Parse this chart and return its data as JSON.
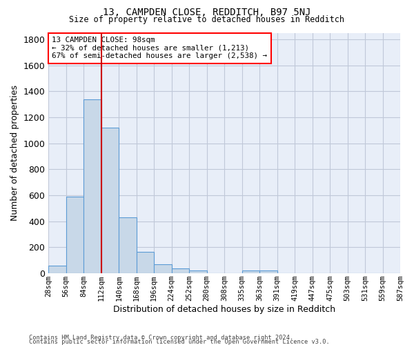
{
  "title1": "13, CAMPDEN CLOSE, REDDITCH, B97 5NJ",
  "title2": "Size of property relative to detached houses in Redditch",
  "xlabel": "Distribution of detached houses by size in Redditch",
  "ylabel": "Number of detached properties",
  "footnote1": "Contains HM Land Registry data © Crown copyright and database right 2024.",
  "footnote2": "Contains public sector information licensed under the Open Government Licence v3.0.",
  "annotation_line1": "13 CAMPDEN CLOSE: 98sqm",
  "annotation_line2": "← 32% of detached houses are smaller (1,213)",
  "annotation_line3": "67% of semi-detached houses are larger (2,538) →",
  "bar_color": "#c8d8e8",
  "bar_edge_color": "#5b9bd5",
  "grid_color": "#c0c8d8",
  "bg_color": "#e8eef8",
  "vline_color": "#cc0000",
  "vline_x": 2.5,
  "bin_labels": [
    "28sqm",
    "56sqm",
    "84sqm",
    "112sqm",
    "140sqm",
    "168sqm",
    "196sqm",
    "224sqm",
    "252sqm",
    "280sqm",
    "308sqm",
    "335sqm",
    "363sqm",
    "391sqm",
    "419sqm",
    "447sqm",
    "475sqm",
    "503sqm",
    "531sqm",
    "559sqm",
    "587sqm"
  ],
  "values": [
    60,
    590,
    1340,
    1120,
    430,
    165,
    68,
    40,
    20,
    0,
    0,
    20,
    20,
    0,
    0,
    0,
    0,
    0,
    0,
    0
  ],
  "ylim": [
    0,
    1850
  ],
  "yticks": [
    0,
    200,
    400,
    600,
    800,
    1000,
    1200,
    1400,
    1600,
    1800
  ]
}
